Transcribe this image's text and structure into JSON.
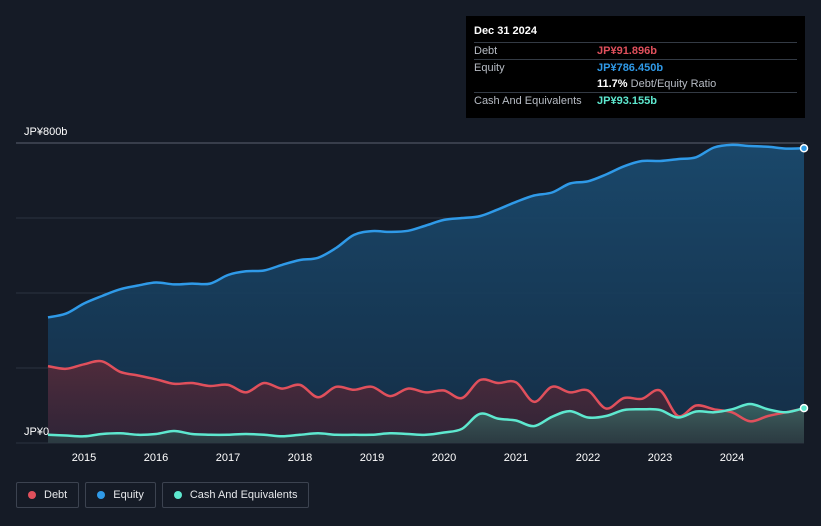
{
  "tooltip": {
    "date": "Dec 31 2024",
    "rows": [
      {
        "label": "Debt",
        "value": "JP¥91.896b",
        "color": "#e0505c"
      },
      {
        "label": "Equity",
        "value": "JP¥786.450b",
        "color": "#2f9ae8"
      },
      {
        "label": "",
        "value": "11.7%",
        "suffix": "Debt/Equity Ratio",
        "color": "#ffffff"
      },
      {
        "label": "Cash And Equivalents",
        "value": "JP¥93.155b",
        "color": "#5ee8cf"
      }
    ]
  },
  "legend": [
    {
      "label": "Debt",
      "color": "#e0505c"
    },
    {
      "label": "Equity",
      "color": "#2f9ae8"
    },
    {
      "label": "Cash And Equivalents",
      "color": "#5ee8cf"
    }
  ],
  "chart_data": {
    "type": "area",
    "x_ticks": [
      "2015",
      "2016",
      "2017",
      "2018",
      "2019",
      "2020",
      "2021",
      "2022",
      "2023",
      "2024"
    ],
    "y_tick_labels": {
      "top": "JP¥800b",
      "bottom": "JP¥0"
    },
    "ylim": [
      0,
      800
    ],
    "xlim": [
      2014.5,
      2025.0
    ],
    "grid": true,
    "legend_position": "bottom-left",
    "series": [
      {
        "name": "Equity",
        "color": "#2f9ae8",
        "x": [
          2014.5,
          2014.75,
          2015.0,
          2015.25,
          2015.5,
          2015.75,
          2016.0,
          2016.25,
          2016.5,
          2016.75,
          2017.0,
          2017.25,
          2017.5,
          2017.75,
          2018.0,
          2018.25,
          2018.5,
          2018.75,
          2019.0,
          2019.25,
          2019.5,
          2019.75,
          2020.0,
          2020.25,
          2020.5,
          2020.75,
          2021.0,
          2021.25,
          2021.5,
          2021.75,
          2022.0,
          2022.25,
          2022.5,
          2022.75,
          2023.0,
          2023.25,
          2023.5,
          2023.75,
          2024.0,
          2024.25,
          2024.5,
          2024.75,
          2025.0
        ],
        "values": [
          335,
          345,
          372,
          392,
          410,
          420,
          428,
          423,
          425,
          425,
          448,
          458,
          460,
          475,
          488,
          494,
          520,
          555,
          565,
          563,
          566,
          580,
          595,
          600,
          605,
          623,
          643,
          660,
          668,
          692,
          698,
          716,
          738,
          752,
          752,
          757,
          762,
          788,
          795,
          792,
          790,
          785,
          786
        ]
      },
      {
        "name": "Debt",
        "color": "#e0505c",
        "x": [
          2014.5,
          2014.75,
          2015.0,
          2015.25,
          2015.5,
          2015.75,
          2016.0,
          2016.25,
          2016.5,
          2016.75,
          2017.0,
          2017.25,
          2017.5,
          2017.75,
          2018.0,
          2018.25,
          2018.5,
          2018.75,
          2019.0,
          2019.25,
          2019.5,
          2019.75,
          2020.0,
          2020.25,
          2020.5,
          2020.75,
          2021.0,
          2021.25,
          2021.5,
          2021.75,
          2022.0,
          2022.25,
          2022.5,
          2022.75,
          2023.0,
          2023.25,
          2023.5,
          2023.75,
          2024.0,
          2024.25,
          2024.5,
          2024.75,
          2025.0
        ],
        "values": [
          205,
          198,
          210,
          218,
          190,
          180,
          170,
          158,
          160,
          152,
          155,
          135,
          160,
          145,
          155,
          122,
          150,
          142,
          150,
          125,
          145,
          135,
          140,
          120,
          168,
          160,
          162,
          110,
          150,
          135,
          140,
          92,
          120,
          118,
          140,
          72,
          100,
          90,
          82,
          58,
          72,
          82,
          92
        ]
      },
      {
        "name": "Cash And Equivalents",
        "color": "#5ee8cf",
        "x": [
          2014.5,
          2014.75,
          2015.0,
          2015.25,
          2015.5,
          2015.75,
          2016.0,
          2016.25,
          2016.5,
          2016.75,
          2017.0,
          2017.25,
          2017.5,
          2017.75,
          2018.0,
          2018.25,
          2018.5,
          2018.75,
          2019.0,
          2019.25,
          2019.5,
          2019.75,
          2020.0,
          2020.25,
          2020.5,
          2020.75,
          2021.0,
          2021.25,
          2021.5,
          2021.75,
          2022.0,
          2022.25,
          2022.5,
          2022.75,
          2023.0,
          2023.25,
          2023.5,
          2023.75,
          2024.0,
          2024.25,
          2024.5,
          2024.75,
          2025.0
        ],
        "values": [
          22,
          20,
          18,
          24,
          26,
          22,
          24,
          32,
          24,
          22,
          22,
          24,
          22,
          18,
          22,
          26,
          22,
          22,
          22,
          26,
          24,
          22,
          28,
          38,
          78,
          65,
          60,
          45,
          70,
          85,
          68,
          72,
          88,
          90,
          88,
          68,
          84,
          82,
          90,
          104,
          90,
          82,
          93
        ]
      }
    ]
  }
}
